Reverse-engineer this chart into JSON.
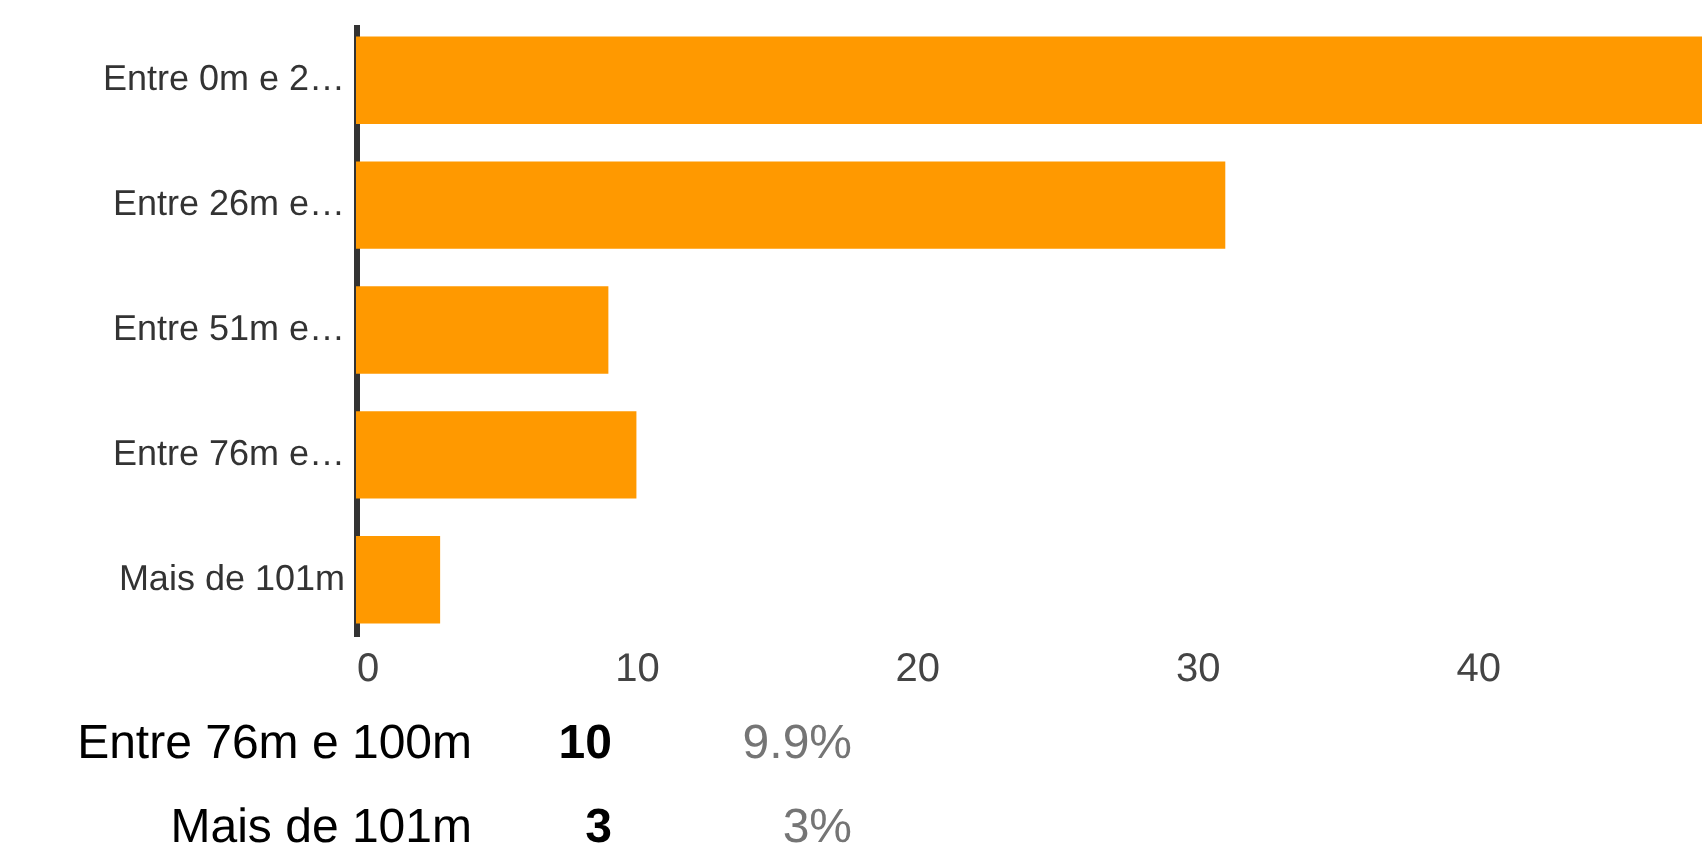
{
  "chart_data": {
    "type": "bar",
    "orientation": "horizontal",
    "categories": [
      "Entre 0m e 2…",
      "Entre 26m e…",
      "Entre 51m e…",
      "Entre 76m e…",
      "Mais de 101m"
    ],
    "values": [
      48,
      31,
      9,
      10,
      3
    ],
    "color": "#ff9900",
    "xlim": [
      0,
      48
    ],
    "xticks": [
      0,
      10,
      20,
      30,
      40
    ],
    "grid": false,
    "annotations": [
      "Entre 76m e 100m",
      "10",
      "9.9%",
      "Mais de 101m",
      "3",
      "3%"
    ]
  }
}
